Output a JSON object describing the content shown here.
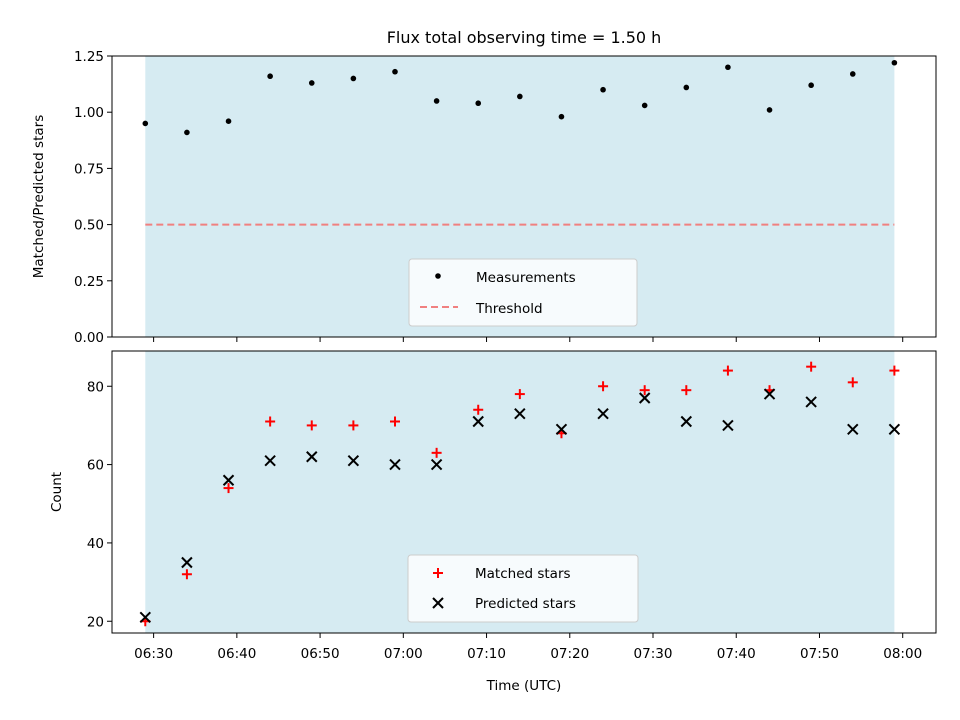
{
  "chart_data": [
    {
      "type": "scatter",
      "title": "Flux total observing time = 1.50 h",
      "ylabel": "Matched/Predicted stars",
      "ylim": [
        0,
        1.25
      ],
      "yticks": [
        "0.00",
        "0.25",
        "0.50",
        "0.75",
        "1.00",
        "1.25"
      ],
      "shaded_span": [
        "06:29",
        "07:59"
      ],
      "series": [
        {
          "name": "Measurements",
          "marker": "dot",
          "color": "#000000",
          "x": [
            "06:29",
            "06:34",
            "06:39",
            "06:44",
            "06:49",
            "06:54",
            "06:59",
            "07:04",
            "07:09",
            "07:14",
            "07:19",
            "07:24",
            "07:29",
            "07:34",
            "07:39",
            "07:44",
            "07:49",
            "07:54",
            "07:59"
          ],
          "y": [
            0.95,
            0.91,
            0.96,
            1.16,
            1.13,
            1.15,
            1.18,
            1.05,
            1.04,
            1.07,
            0.98,
            1.1,
            1.03,
            1.11,
            1.2,
            1.01,
            1.12,
            1.17,
            1.22
          ]
        },
        {
          "name": "Threshold",
          "style": "dashed",
          "color": "#f08080",
          "x": [
            "06:29",
            "07:59"
          ],
          "y": [
            0.5,
            0.5
          ]
        }
      ],
      "legend": "lower center"
    },
    {
      "type": "scatter",
      "xlabel": "Time (UTC)",
      "ylabel": "Count",
      "ylim": [
        17,
        89
      ],
      "yticks": [
        "20",
        "40",
        "60",
        "80"
      ],
      "xticks": [
        "06:30",
        "06:40",
        "06:50",
        "07:00",
        "07:10",
        "07:20",
        "07:30",
        "07:40",
        "07:50",
        "08:00"
      ],
      "shaded_span": [
        "06:29",
        "07:59"
      ],
      "series": [
        {
          "name": "Matched stars",
          "marker": "plus",
          "color": "#ff0000",
          "x": [
            "06:29",
            "06:34",
            "06:39",
            "06:44",
            "06:49",
            "06:54",
            "06:59",
            "07:04",
            "07:09",
            "07:14",
            "07:19",
            "07:24",
            "07:29",
            "07:34",
            "07:39",
            "07:44",
            "07:49",
            "07:54",
            "07:59"
          ],
          "y": [
            20,
            32,
            54,
            71,
            70,
            70,
            71,
            63,
            74,
            78,
            68,
            80,
            79,
            79,
            84,
            79,
            85,
            81,
            84
          ]
        },
        {
          "name": "Predicted stars",
          "marker": "x",
          "color": "#000000",
          "x": [
            "06:29",
            "06:34",
            "06:39",
            "06:44",
            "06:49",
            "06:54",
            "06:59",
            "07:04",
            "07:09",
            "07:14",
            "07:19",
            "07:24",
            "07:29",
            "07:34",
            "07:39",
            "07:44",
            "07:49",
            "07:54",
            "07:59"
          ],
          "y": [
            21,
            35,
            56,
            61,
            62,
            61,
            60,
            60,
            71,
            73,
            69,
            73,
            77,
            71,
            70,
            78,
            76,
            69,
            69
          ]
        }
      ],
      "legend": "lower center"
    }
  ]
}
